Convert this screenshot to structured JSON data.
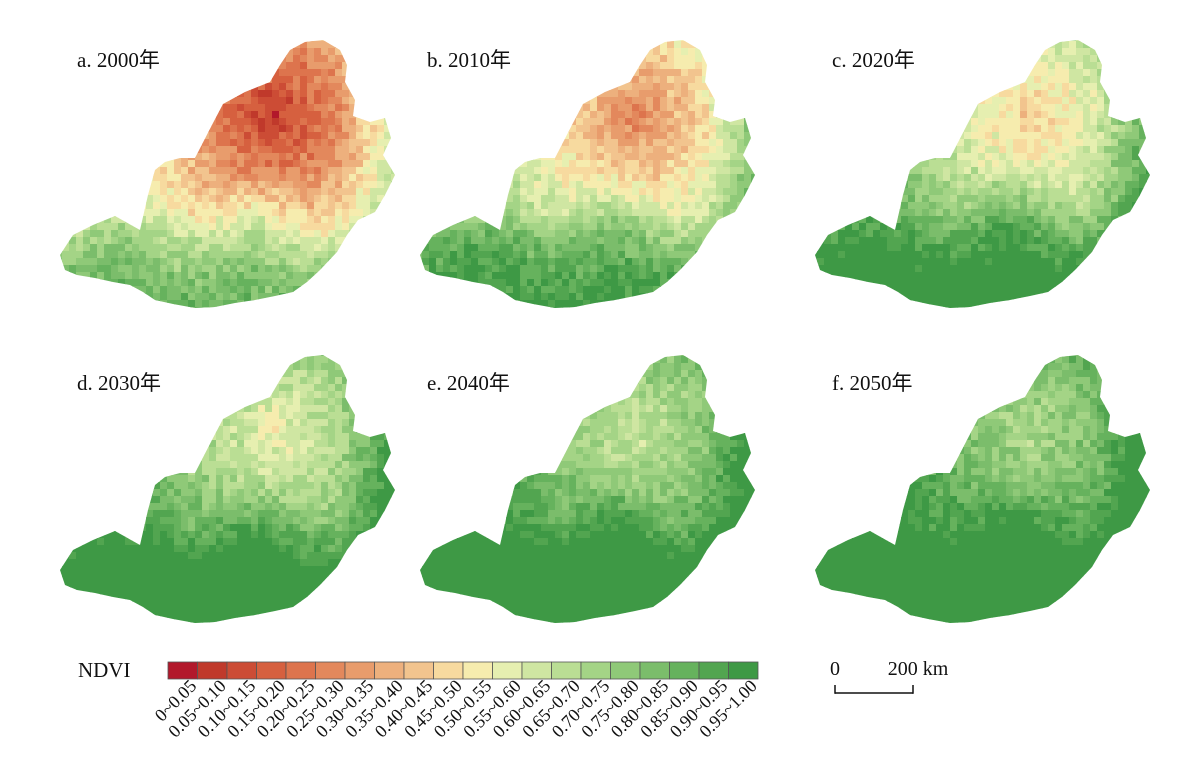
{
  "panels": [
    {
      "label": "a. 2000年",
      "year": 2000,
      "greenness": 0.0
    },
    {
      "label": "b. 2010年",
      "year": 2010,
      "greenness": 0.3
    },
    {
      "label": "c. 2020年",
      "year": 2020,
      "greenness": 0.55
    },
    {
      "label": "d. 2030年",
      "year": 2030,
      "greenness": 0.72
    },
    {
      "label": "e. 2040年",
      "year": 2040,
      "greenness": 0.84
    },
    {
      "label": "f. 2050年",
      "year": 2050,
      "greenness": 0.92
    }
  ],
  "legend": {
    "title": "NDVI",
    "classes": [
      {
        "label": "0~0.05",
        "color": "#b2182b"
      },
      {
        "label": "0.05~0.10",
        "color": "#c0392b"
      },
      {
        "label": "0.10~0.15",
        "color": "#cc4c35"
      },
      {
        "label": "0.15~0.20",
        "color": "#d6603f"
      },
      {
        "label": "0.20~0.25",
        "color": "#dd744d"
      },
      {
        "label": "0.25~0.30",
        "color": "#e3885c"
      },
      {
        "label": "0.30~0.35",
        "color": "#e89c6c"
      },
      {
        "label": "0.35~0.40",
        "color": "#edb07d"
      },
      {
        "label": "0.40~0.45",
        "color": "#f2c48e"
      },
      {
        "label": "0.45~0.50",
        "color": "#f7da9f"
      },
      {
        "label": "0.50~0.55",
        "color": "#f6ecae"
      },
      {
        "label": "0.55~0.60",
        "color": "#e6efb0"
      },
      {
        "label": "0.60~0.65",
        "color": "#cfe6a2"
      },
      {
        "label": "0.65~0.70",
        "color": "#bade94"
      },
      {
        "label": "0.70~0.75",
        "color": "#a4d486"
      },
      {
        "label": "0.75~0.80",
        "color": "#8fc978"
      },
      {
        "label": "0.80~0.85",
        "color": "#7bbd6b"
      },
      {
        "label": "0.85~0.90",
        "color": "#66b25d"
      },
      {
        "label": "0.90~0.95",
        "color": "#52a550"
      },
      {
        "label": "0.95~1.00",
        "color": "#3e9945"
      }
    ]
  },
  "scale_bar": {
    "start_label": "0",
    "end_label": "200 km"
  }
}
